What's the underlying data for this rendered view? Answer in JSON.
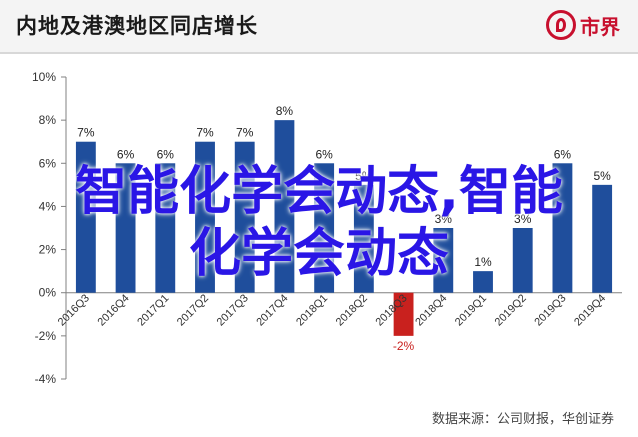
{
  "header": {
    "title": "内地及港澳地区同店增长",
    "logo_text": "市界"
  },
  "overlay": {
    "line1": "智能化学会动态,智能",
    "line2": "化学会动态"
  },
  "source": "数据来源：公司财报，华创证券",
  "chart_data": {
    "type": "bar",
    "categories": [
      "2016Q3",
      "2016Q4",
      "2017Q1",
      "2017Q2",
      "2017Q3",
      "2017Q4",
      "2018Q1",
      "2018Q2",
      "2018Q3",
      "2018Q4",
      "2019Q1",
      "2019Q2",
      "2019Q3",
      "2019Q4"
    ],
    "values": [
      7,
      6,
      6,
      7,
      7,
      8,
      6,
      5,
      -2,
      3,
      1,
      3,
      6,
      5
    ],
    "data_labels": [
      "7%",
      "6%",
      "6%",
      "7%",
      "7%",
      "8%",
      "6%",
      "5%",
      "-2%",
      "3%",
      "1%",
      "3%",
      "6%",
      "5%"
    ],
    "y_ticks": [
      "10%",
      "8%",
      "6%",
      "4%",
      "2%",
      "0%",
      "-2%",
      "-4%"
    ],
    "ylim": [
      -4,
      10
    ],
    "y_step": 2,
    "grid": false,
    "colors": {
      "positive": "#1f4e9c",
      "negative": "#c9211e",
      "negative_label": "#c9211e"
    }
  }
}
